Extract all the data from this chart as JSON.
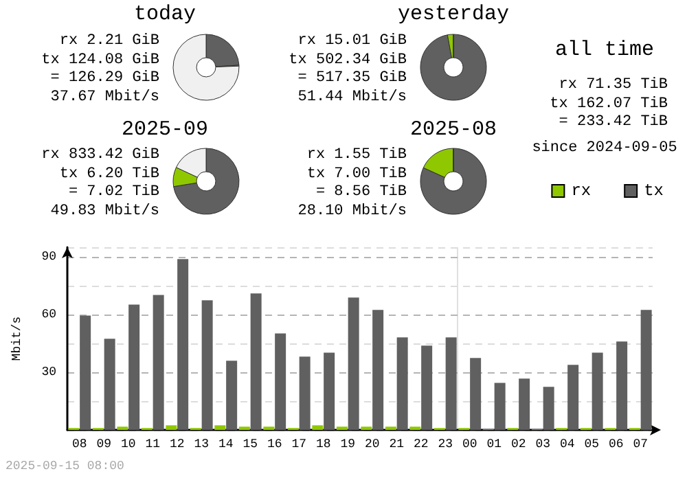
{
  "chart_data": [
    {
      "type": "donut",
      "title": "today",
      "categories": [
        null,
        null,
        null
      ],
      "values": [
        23.98,
        0.43,
        75.59
      ],
      "colors": [
        "#606060",
        "#8fc800",
        "#f0f0f0"
      ],
      "annotations": [
        "rx 2.21 GiB",
        "tx 124.08 GiB",
        "= 126.29 GiB",
        "37.67 Mbit/s"
      ]
    },
    {
      "type": "donut",
      "title": "yesterday",
      "categories": [
        null,
        null,
        null
      ],
      "values": [
        97.1,
        2.9,
        0
      ],
      "colors": [
        "#606060",
        "#8fc800",
        "#f0f0f0"
      ],
      "annotations": [
        "rx 15.01 GiB",
        "tx 502.34 GiB",
        "= 517.35 GiB",
        "51.44 Mbit/s"
      ]
    },
    {
      "type": "donut",
      "title": "2025-09",
      "categories": [
        null,
        null,
        null
      ],
      "values": [
        72.43,
        9.51,
        18.06
      ],
      "colors": [
        "#606060",
        "#8fc800",
        "#f0f0f0"
      ],
      "annotations": [
        "rx 833.42 GiB",
        "tx 6.20 TiB",
        "= 7.02 TiB",
        "49.83 Mbit/s"
      ]
    },
    {
      "type": "donut",
      "title": "2025-08",
      "categories": [
        null,
        null,
        null
      ],
      "values": [
        81.78,
        18.11,
        0.11
      ],
      "colors": [
        "#606060",
        "#8fc800",
        "#f0f0f0"
      ],
      "annotations": [
        "rx 1.55 TiB",
        "tx 7.00 TiB",
        "= 8.56 TiB",
        "28.10 Mbit/s"
      ]
    },
    {
      "type": "other",
      "title": "all time",
      "annotations": [
        "rx 71.35 TiB",
        "tx 162.07 TiB",
        "= 233.42 TiB",
        "since 2024-09-05"
      ]
    },
    {
      "type": "bar",
      "ylabel": "Mbit/s",
      "categories": [
        "08",
        "09",
        "10",
        "11",
        "12",
        "13",
        "14",
        "15",
        "16",
        "17",
        "18",
        "19",
        "20",
        "21",
        "22",
        "23",
        "00",
        "01",
        "02",
        "03",
        "04",
        "05",
        "06",
        "07"
      ],
      "series": [
        {
          "name": "rx",
          "color": "#8fc800",
          "values": [
            1,
            1,
            1.7,
            1,
            2.4,
            1,
            2.4,
            1.7,
            1.7,
            1,
            2.4,
            1.7,
            1.7,
            1.7,
            1.7,
            1,
            1,
            0.3,
            1,
            0.3,
            1,
            1,
            1,
            1
          ]
        },
        {
          "name": "tx",
          "color": "#606060",
          "values": [
            59.5,
            47.4,
            65.2,
            70.2,
            88.8,
            67.4,
            36.0,
            71.0,
            50.2,
            38.1,
            40.2,
            68.8,
            62.4,
            48.1,
            43.8,
            48.1,
            37.4,
            24.5,
            26.7,
            22.4,
            33.8,
            40.2,
            46.0,
            62.4
          ]
        }
      ],
      "ylim": [
        0,
        95
      ],
      "yticks": [
        {
          "value": 0,
          "label": null
        },
        {
          "value": 15,
          "label": null
        },
        30,
        {
          "value": 45,
          "label": null
        },
        60,
        {
          "value": 75,
          "label": null
        },
        90
      ],
      "grid": "y",
      "legend": "top right",
      "ref_lines": [
        {
          "axis": "x",
          "value": "00",
          "color": "#e0e0e0"
        }
      ],
      "annotations": [
        "2025-09-15 08:00"
      ]
    }
  ]
}
